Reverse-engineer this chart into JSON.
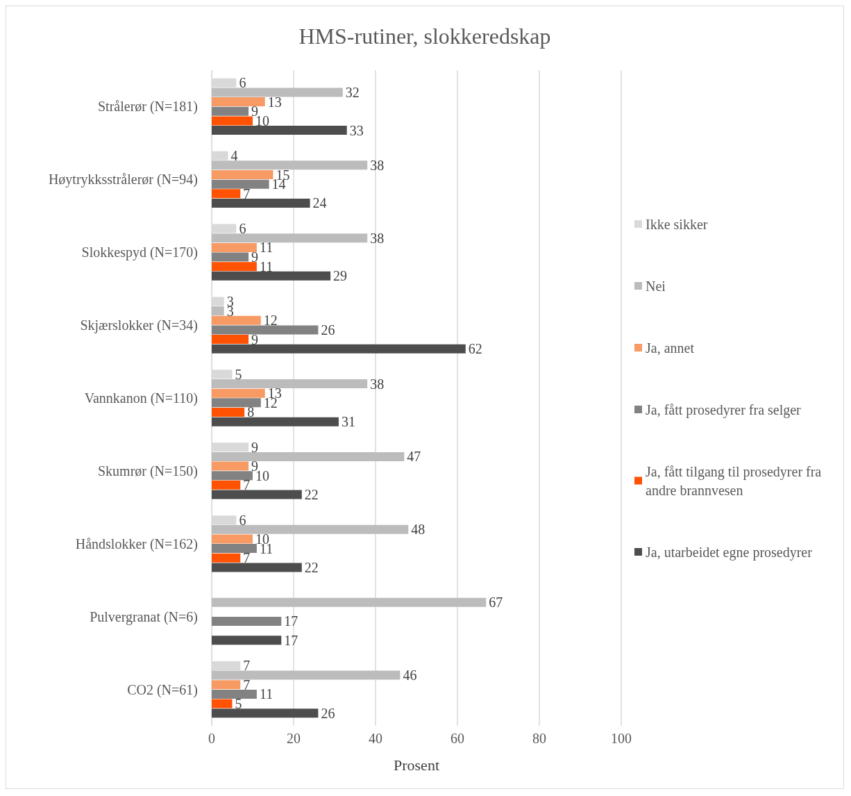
{
  "chart_data": {
    "type": "bar",
    "orientation": "horizontal",
    "title": "HMS-rutiner, slokkeredskap",
    "xlabel": "Prosent",
    "categories": [
      "Strålerør (N=181)",
      "Høytrykksstrålerør (N=94)",
      "Slokkespyd (N=170)",
      "Skjærslokker (N=34)",
      "Vannkanon (N=110)",
      "Skumrør (N=150)",
      "Håndslokker (N=162)",
      "Pulvergranat (N=6)",
      "CO2 (N=61)"
    ],
    "series": [
      {
        "name": "Ikke sikker",
        "color": "#d9d9d9",
        "values": [
          6,
          4,
          6,
          3,
          5,
          9,
          6,
          null,
          7
        ]
      },
      {
        "name": "Nei",
        "color": "#bcbcbc",
        "values": [
          32,
          38,
          38,
          3,
          38,
          47,
          48,
          67,
          46
        ]
      },
      {
        "name": "Ja, annet",
        "color": "#f79a64",
        "values": [
          13,
          15,
          11,
          12,
          13,
          9,
          10,
          null,
          7
        ]
      },
      {
        "name": "Ja, fått prosedyrer fra selger",
        "color": "#828282",
        "values": [
          9,
          14,
          9,
          26,
          12,
          10,
          11,
          17,
          11
        ]
      },
      {
        "name": "Ja, fått tilgang til prosedyrer fra andre brannvesen",
        "color": "#ff5203",
        "values": [
          10,
          7,
          11,
          9,
          8,
          7,
          7,
          null,
          5
        ]
      },
      {
        "name": "Ja, utarbeidet egne prosedyrer",
        "color": "#4d4d4d",
        "values": [
          33,
          24,
          29,
          62,
          31,
          22,
          22,
          17,
          26
        ]
      }
    ],
    "xlim": [
      0,
      100
    ],
    "xticks": [
      0,
      20,
      40,
      60,
      80,
      100
    ],
    "grid": "x",
    "legend": "right",
    "data_labels": true
  }
}
